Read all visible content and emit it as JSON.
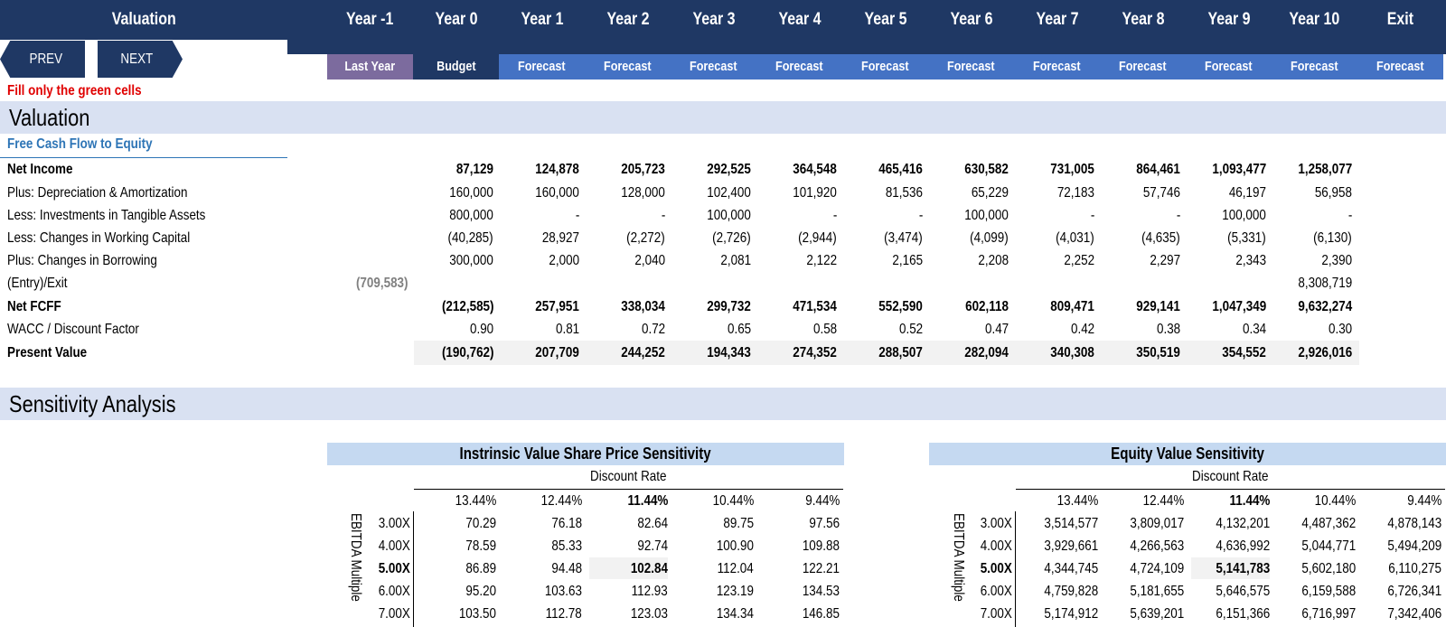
{
  "header": {
    "title": "Valuation",
    "years": [
      "Year -1",
      "Year 0",
      "Year 1",
      "Year 2",
      "Year 3",
      "Year 4",
      "Year 5",
      "Year 6",
      "Year 7",
      "Year 8",
      "Year 9",
      "Year 10",
      "Exit"
    ],
    "subheaders": [
      "Last Year",
      "Budget",
      "Forecast",
      "Forecast",
      "Forecast",
      "Forecast",
      "Forecast",
      "Forecast",
      "Forecast",
      "Forecast",
      "Forecast",
      "Forecast",
      "Forecast"
    ]
  },
  "colors": {
    "navy": "#1f3864",
    "last_year": "#7c6b9e",
    "forecast": "#4472c4",
    "band": "#d9e1f2",
    "instruction": "#e00000",
    "subtitle": "#2e75b6",
    "sens_title": "#c5d9f1"
  },
  "nav": {
    "prev": "PREV",
    "next": "NEXT"
  },
  "instruction": "Fill only the green cells",
  "valuation_section": {
    "title": "Valuation",
    "subtitle": "Free Cash Flow to Equity"
  },
  "rows": [
    {
      "label": "Net Income",
      "bold": true,
      "values": [
        "",
        "87,129",
        "124,878",
        "205,723",
        "292,525",
        "364,548",
        "465,416",
        "630,582",
        "731,005",
        "864,461",
        "1,093,477",
        "1,258,077",
        ""
      ]
    },
    {
      "label": "Plus: Depreciation & Amortization",
      "bold": false,
      "values": [
        "",
        "160,000",
        "160,000",
        "128,000",
        "102,400",
        "101,920",
        "81,536",
        "65,229",
        "72,183",
        "57,746",
        "46,197",
        "56,958",
        ""
      ]
    },
    {
      "label": "Less: Investments in Tangible Assets",
      "bold": false,
      "values": [
        "",
        "800,000",
        "-",
        "-",
        "100,000",
        "-",
        "-",
        "100,000",
        "-",
        "-",
        "100,000",
        "-",
        ""
      ]
    },
    {
      "label": "Less: Changes in Working Capital",
      "bold": false,
      "values": [
        "",
        "(40,285)",
        "28,927",
        "(2,272)",
        "(2,726)",
        "(2,944)",
        "(3,474)",
        "(4,099)",
        "(4,031)",
        "(4,635)",
        "(5,331)",
        "(6,130)",
        ""
      ]
    },
    {
      "label": "Plus: Changes in Borrowing",
      "bold": false,
      "values": [
        "",
        "300,000",
        "2,000",
        "2,040",
        "2,081",
        "2,122",
        "2,165",
        "2,208",
        "2,252",
        "2,297",
        "2,343",
        "2,390",
        ""
      ]
    },
    {
      "label": "(Entry)/Exit",
      "bold": false,
      "values": [
        "(709,583)",
        "",
        "",
        "",
        "",
        "",
        "",
        "",
        "",
        "",
        "",
        "8,308,719",
        ""
      ]
    },
    {
      "label": "Net FCFF",
      "bold": true,
      "values": [
        "",
        "(212,585)",
        "257,951",
        "338,034",
        "299,732",
        "471,534",
        "552,590",
        "602,118",
        "809,471",
        "929,141",
        "1,047,349",
        "9,632,274",
        ""
      ]
    },
    {
      "label": "WACC / Discount Factor",
      "bold": false,
      "values": [
        "",
        "0.90",
        "0.81",
        "0.72",
        "0.65",
        "0.58",
        "0.52",
        "0.47",
        "0.42",
        "0.38",
        "0.34",
        "0.30",
        ""
      ]
    },
    {
      "label": "Present Value",
      "bold": true,
      "values": [
        "",
        "(190,762)",
        "207,709",
        "244,252",
        "194,343",
        "274,352",
        "288,507",
        "282,094",
        "340,308",
        "350,519",
        "354,552",
        "2,926,016",
        ""
      ]
    }
  ],
  "sensitivity": {
    "title": "Sensitivity Analysis",
    "tables": [
      {
        "title": "Instrinsic Value Share Price Sensitivity",
        "col_axis": "Discount Rate",
        "row_axis": "EBITDA Multiple",
        "columns": [
          "13.44%",
          "12.44%",
          "11.44%",
          "10.44%",
          "9.44%"
        ],
        "row_labels": [
          "3.00X",
          "4.00X",
          "5.00X",
          "6.00X",
          "7.00X"
        ],
        "cells": [
          [
            "70.29",
            "76.18",
            "82.64",
            "89.75",
            "97.56"
          ],
          [
            "78.59",
            "85.33",
            "92.74",
            "100.90",
            "109.88"
          ],
          [
            "86.89",
            "94.48",
            "102.84",
            "112.04",
            "122.21"
          ],
          [
            "95.20",
            "103.63",
            "112.93",
            "123.19",
            "134.53"
          ],
          [
            "103.50",
            "112.78",
            "123.03",
            "134.34",
            "146.85"
          ]
        ]
      },
      {
        "title": "Equity Value Sensitivity",
        "col_axis": "Discount Rate",
        "row_axis": "EBITDA Multiple",
        "columns": [
          "13.44%",
          "12.44%",
          "11.44%",
          "10.44%",
          "9.44%"
        ],
        "row_labels": [
          "3.00X",
          "4.00X",
          "5.00X",
          "6.00X",
          "7.00X"
        ],
        "cells": [
          [
            "3,514,577",
            "3,809,017",
            "4,132,201",
            "4,487,362",
            "4,878,143"
          ],
          [
            "3,929,661",
            "4,266,563",
            "4,636,992",
            "5,044,771",
            "5,494,209"
          ],
          [
            "4,344,745",
            "4,724,109",
            "5,141,783",
            "5,602,180",
            "6,110,275"
          ],
          [
            "4,759,828",
            "5,181,655",
            "5,646,575",
            "6,159,588",
            "6,726,341"
          ],
          [
            "5,174,912",
            "5,639,201",
            "6,151,366",
            "6,716,997",
            "7,342,406"
          ]
        ]
      }
    ]
  }
}
